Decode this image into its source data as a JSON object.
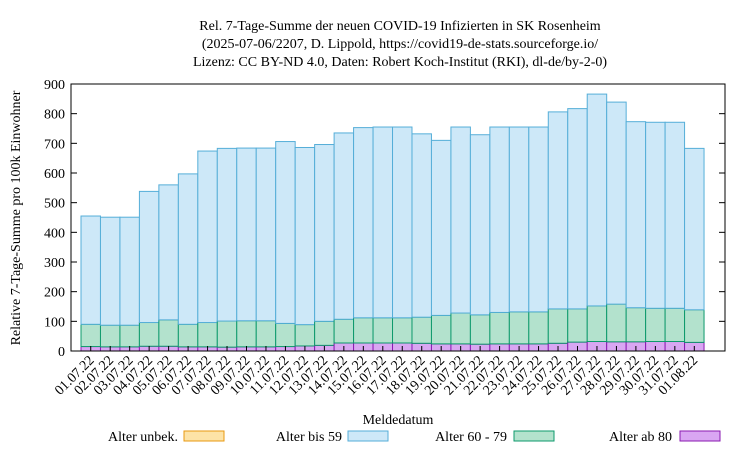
{
  "chart_data": {
    "type": "bar",
    "stacked": true,
    "title_lines": [
      "Rel. 7-Tage-Summe der neuen COVID-19 Infizierten in SK Rosenheim",
      "(2025-07-06/2207, D. Lippold, https://covid19-de-stats.sourceforge.io/",
      "Lizenz: CC BY-ND 4.0, Daten: Robert Koch-Institut (RKI), dl-de/by-2-0)"
    ],
    "xlabel": "Meldedatum",
    "ylabel": "Relative 7-Tage-Summe pro 100k Einwohner",
    "ylim": [
      0,
      900
    ],
    "yticks": [
      0,
      100,
      200,
      300,
      400,
      500,
      600,
      700,
      800,
      900
    ],
    "grid": false,
    "legend_position": "bottom",
    "categories": [
      "01.07.22",
      "02.07.22",
      "03.07.22",
      "04.07.22",
      "05.07.22",
      "06.07.22",
      "07.07.22",
      "08.07.22",
      "09.07.22",
      "10.07.22",
      "11.07.22",
      "12.07.22",
      "13.07.22",
      "14.07.22",
      "15.07.22",
      "16.07.22",
      "17.07.22",
      "18.07.22",
      "19.07.22",
      "20.07.22",
      "21.07.22",
      "22.07.22",
      "23.07.22",
      "24.07.22",
      "25.07.22",
      "26.07.22",
      "27.07.22",
      "28.07.22",
      "29.07.22",
      "30.07.22",
      "31.07.22",
      "01.08.22"
    ],
    "series": [
      {
        "name": "Alter ab 80",
        "color": "#d9a6f2",
        "edge": "#8a1ab0",
        "values": [
          15,
          14,
          14,
          16,
          16,
          14,
          14,
          13,
          14,
          14,
          15,
          17,
          19,
          27,
          27,
          27,
          27,
          26,
          24,
          24,
          23,
          24,
          24,
          24,
          26,
          30,
          32,
          31,
          31,
          32,
          32,
          29
        ]
      },
      {
        "name": "Alter 60 - 79",
        "color": "#b3e2cd",
        "edge": "#0e9a6c",
        "values": [
          75,
          73,
          73,
          80,
          89,
          76,
          82,
          88,
          88,
          88,
          78,
          72,
          81,
          80,
          85,
          85,
          85,
          88,
          96,
          104,
          99,
          106,
          108,
          108,
          116,
          112,
          120,
          127,
          115,
          112,
          112,
          110
        ]
      },
      {
        "name": "Alter bis 59",
        "color": "#cde8f8",
        "edge": "#55aed8",
        "values": [
          365,
          364,
          364,
          442,
          455,
          507,
          578,
          582,
          582,
          582,
          613,
          597,
          596,
          628,
          641,
          643,
          643,
          618,
          590,
          627,
          607,
          625,
          623,
          623,
          664,
          675,
          714,
          681,
          627,
          627,
          627,
          544
        ]
      },
      {
        "name": "Alter unbek.",
        "color": "#fde3a7",
        "edge": "#e89a10",
        "values": [
          0,
          0,
          0,
          0,
          0,
          0,
          0,
          0,
          0,
          0,
          0,
          0,
          0,
          0,
          0,
          0,
          0,
          0,
          0,
          0,
          0,
          0,
          0,
          0,
          0,
          0,
          0,
          0,
          0,
          0,
          0,
          0
        ]
      }
    ],
    "legend_order": [
      "Alter unbek.",
      "Alter bis 59",
      "Alter 60 - 79",
      "Alter ab 80"
    ]
  }
}
